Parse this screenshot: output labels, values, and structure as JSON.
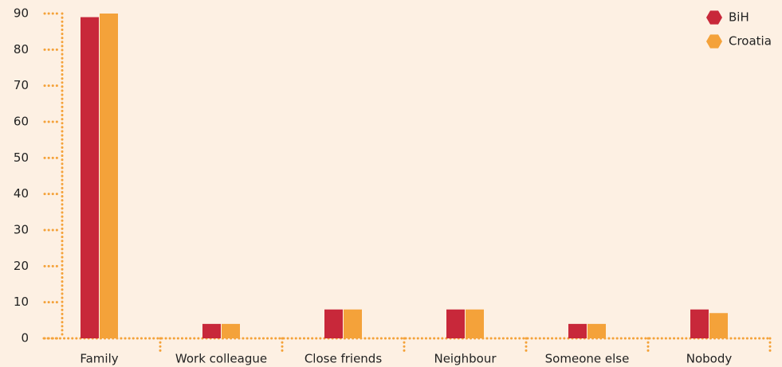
{
  "chart_data": {
    "type": "bar",
    "categories": [
      "Family",
      "Work colleague",
      "Close friends",
      "Neighbour",
      "Someone else",
      "Nobody"
    ],
    "series": [
      {
        "name": "BiH",
        "color": "#c8283a",
        "values": [
          89,
          4,
          8,
          8,
          4,
          8
        ]
      },
      {
        "name": "Croatia",
        "color": "#f4a23a",
        "values": [
          90,
          4,
          8,
          8,
          4,
          7
        ]
      }
    ],
    "ylim": [
      0,
      90
    ],
    "yticks": [
      0,
      10,
      20,
      30,
      40,
      50,
      60,
      70,
      80,
      90
    ],
    "legend": "top-right"
  }
}
